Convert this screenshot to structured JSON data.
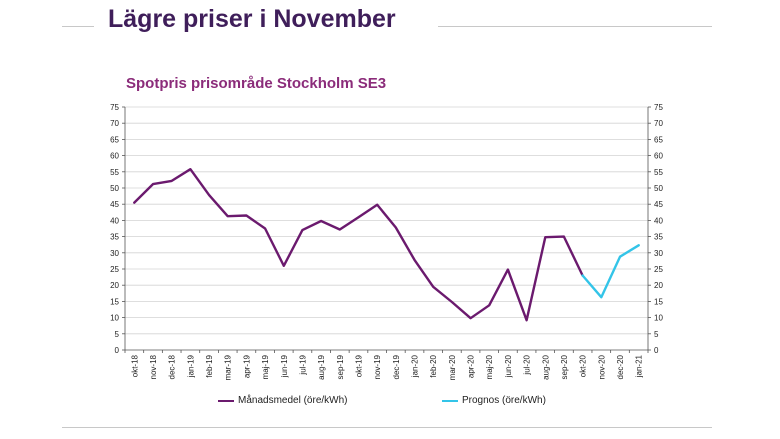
{
  "header": {
    "title": "Lägre priser i November"
  },
  "chart_data": {
    "type": "line",
    "title": "Spotpris prisområde Stockholm SE3",
    "categories": [
      "okt-18",
      "nov-18",
      "dec-18",
      "jan-19",
      "feb-19",
      "mar-19",
      "apr-19",
      "maj-19",
      "jun-19",
      "jul-19",
      "aug-19",
      "sep-19",
      "okt-19",
      "nov-19",
      "dec-19",
      "jan-20",
      "feb-20",
      "mar-20",
      "apr-20",
      "maj-20",
      "jun-20",
      "jul-20",
      "aug-20",
      "sep-20",
      "okt-20",
      "nov-20",
      "dec-20",
      "jan-21"
    ],
    "ylim": [
      0,
      75
    ],
    "yticks": [
      0,
      5,
      10,
      15,
      20,
      25,
      30,
      35,
      40,
      45,
      50,
      55,
      60,
      65,
      70,
      75
    ],
    "grid": true,
    "legend_position": "bottom",
    "series": [
      {
        "name": "Månadsmedel (öre/kWh)",
        "color": "#6b1a6e",
        "values": [
          45.5,
          51.2,
          52.2,
          55.8,
          47.8,
          41.3,
          41.5,
          37.5,
          26.0,
          37.0,
          39.8,
          37.2,
          41.0,
          44.8,
          37.8,
          27.8,
          19.5,
          14.8,
          9.8,
          13.8,
          24.8,
          9.2,
          34.8,
          35.0,
          23.0,
          null,
          null,
          null
        ]
      },
      {
        "name": "Prognos (öre/kWh)",
        "color": "#33c4e8",
        "values": [
          null,
          null,
          null,
          null,
          null,
          null,
          null,
          null,
          null,
          null,
          null,
          null,
          null,
          null,
          null,
          null,
          null,
          null,
          null,
          null,
          null,
          null,
          null,
          null,
          23.0,
          16.3,
          28.8,
          32.3
        ]
      }
    ]
  }
}
